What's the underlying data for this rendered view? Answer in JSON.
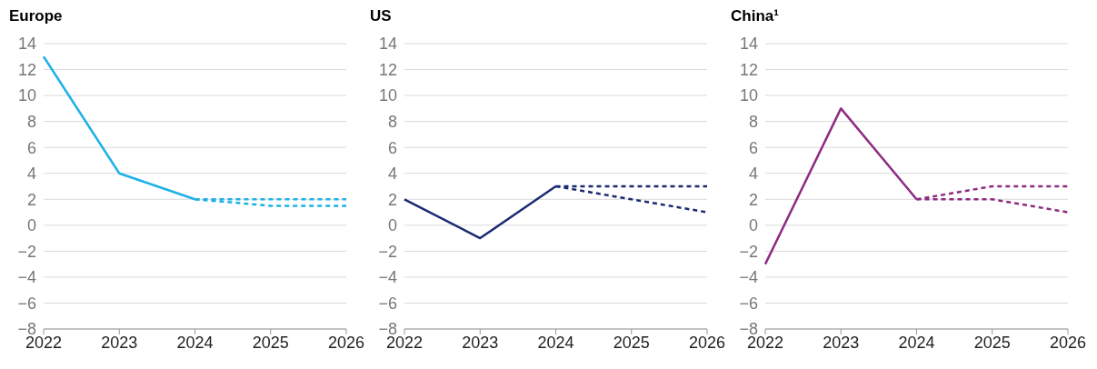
{
  "chart_data": [
    {
      "type": "line",
      "title": "Europe",
      "categories": [
        "2022",
        "2023",
        "2024",
        "2025",
        "2026"
      ],
      "ylim": [
        -8,
        14
      ],
      "yticks": [
        {
          "value": -8,
          "label": "−8"
        },
        {
          "value": -6,
          "label": "−6"
        },
        {
          "value": -4,
          "label": "−4"
        },
        {
          "value": -2,
          "label": "−2"
        },
        0,
        2,
        4,
        6,
        8,
        10,
        12,
        14
      ],
      "grid": "y",
      "marker": "none",
      "series": [
        {
          "color": "#1eb1e7",
          "line_style": "solid",
          "values": [
            13,
            4,
            2,
            null,
            null
          ]
        },
        {
          "color": "#1eb1e7",
          "line_style": "dotted",
          "values": [
            null,
            null,
            2,
            2,
            2
          ]
        },
        {
          "color": "#1eb1e7",
          "line_style": "dotted",
          "values": [
            null,
            null,
            2,
            1.5,
            1.5
          ]
        }
      ]
    },
    {
      "type": "line",
      "title": "US",
      "categories": [
        "2022",
        "2023",
        "2024",
        "2025",
        "2026"
      ],
      "ylim": [
        -8,
        14
      ],
      "yticks": [
        {
          "value": -8,
          "label": "−8"
        },
        {
          "value": -6,
          "label": "−6"
        },
        {
          "value": -4,
          "label": "−4"
        },
        {
          "value": -2,
          "label": "−2"
        },
        0,
        2,
        4,
        6,
        8,
        10,
        12,
        14
      ],
      "grid": "y",
      "marker": "none",
      "series": [
        {
          "color": "#1b2a72",
          "line_style": "solid",
          "values": [
            2,
            -1,
            3,
            null,
            null
          ]
        },
        {
          "color": "#1b2a72",
          "line_style": "dotted",
          "values": [
            null,
            null,
            3,
            3,
            3
          ]
        },
        {
          "color": "#1b2a72",
          "line_style": "dotted",
          "values": [
            null,
            null,
            3,
            2,
            1
          ]
        }
      ]
    },
    {
      "type": "line",
      "title": "China¹",
      "categories": [
        "2022",
        "2023",
        "2024",
        "2025",
        "2026"
      ],
      "ylim": [
        -8,
        14
      ],
      "yticks": [
        {
          "value": -8,
          "label": "−8"
        },
        {
          "value": -6,
          "label": "−6"
        },
        {
          "value": -4,
          "label": "−4"
        },
        {
          "value": -2,
          "label": "−2"
        },
        0,
        2,
        4,
        6,
        8,
        10,
        12,
        14
      ],
      "grid": "y",
      "marker": "none",
      "series": [
        {
          "color": "#8e2b81",
          "line_style": "solid",
          "values": [
            -3,
            9,
            2,
            null,
            null
          ]
        },
        {
          "color": "#8e2b81",
          "line_style": "dotted",
          "values": [
            null,
            null,
            2,
            3,
            3
          ]
        },
        {
          "color": "#8e2b81",
          "line_style": "dotted",
          "values": [
            null,
            null,
            2,
            2,
            1
          ]
        }
      ]
    }
  ]
}
